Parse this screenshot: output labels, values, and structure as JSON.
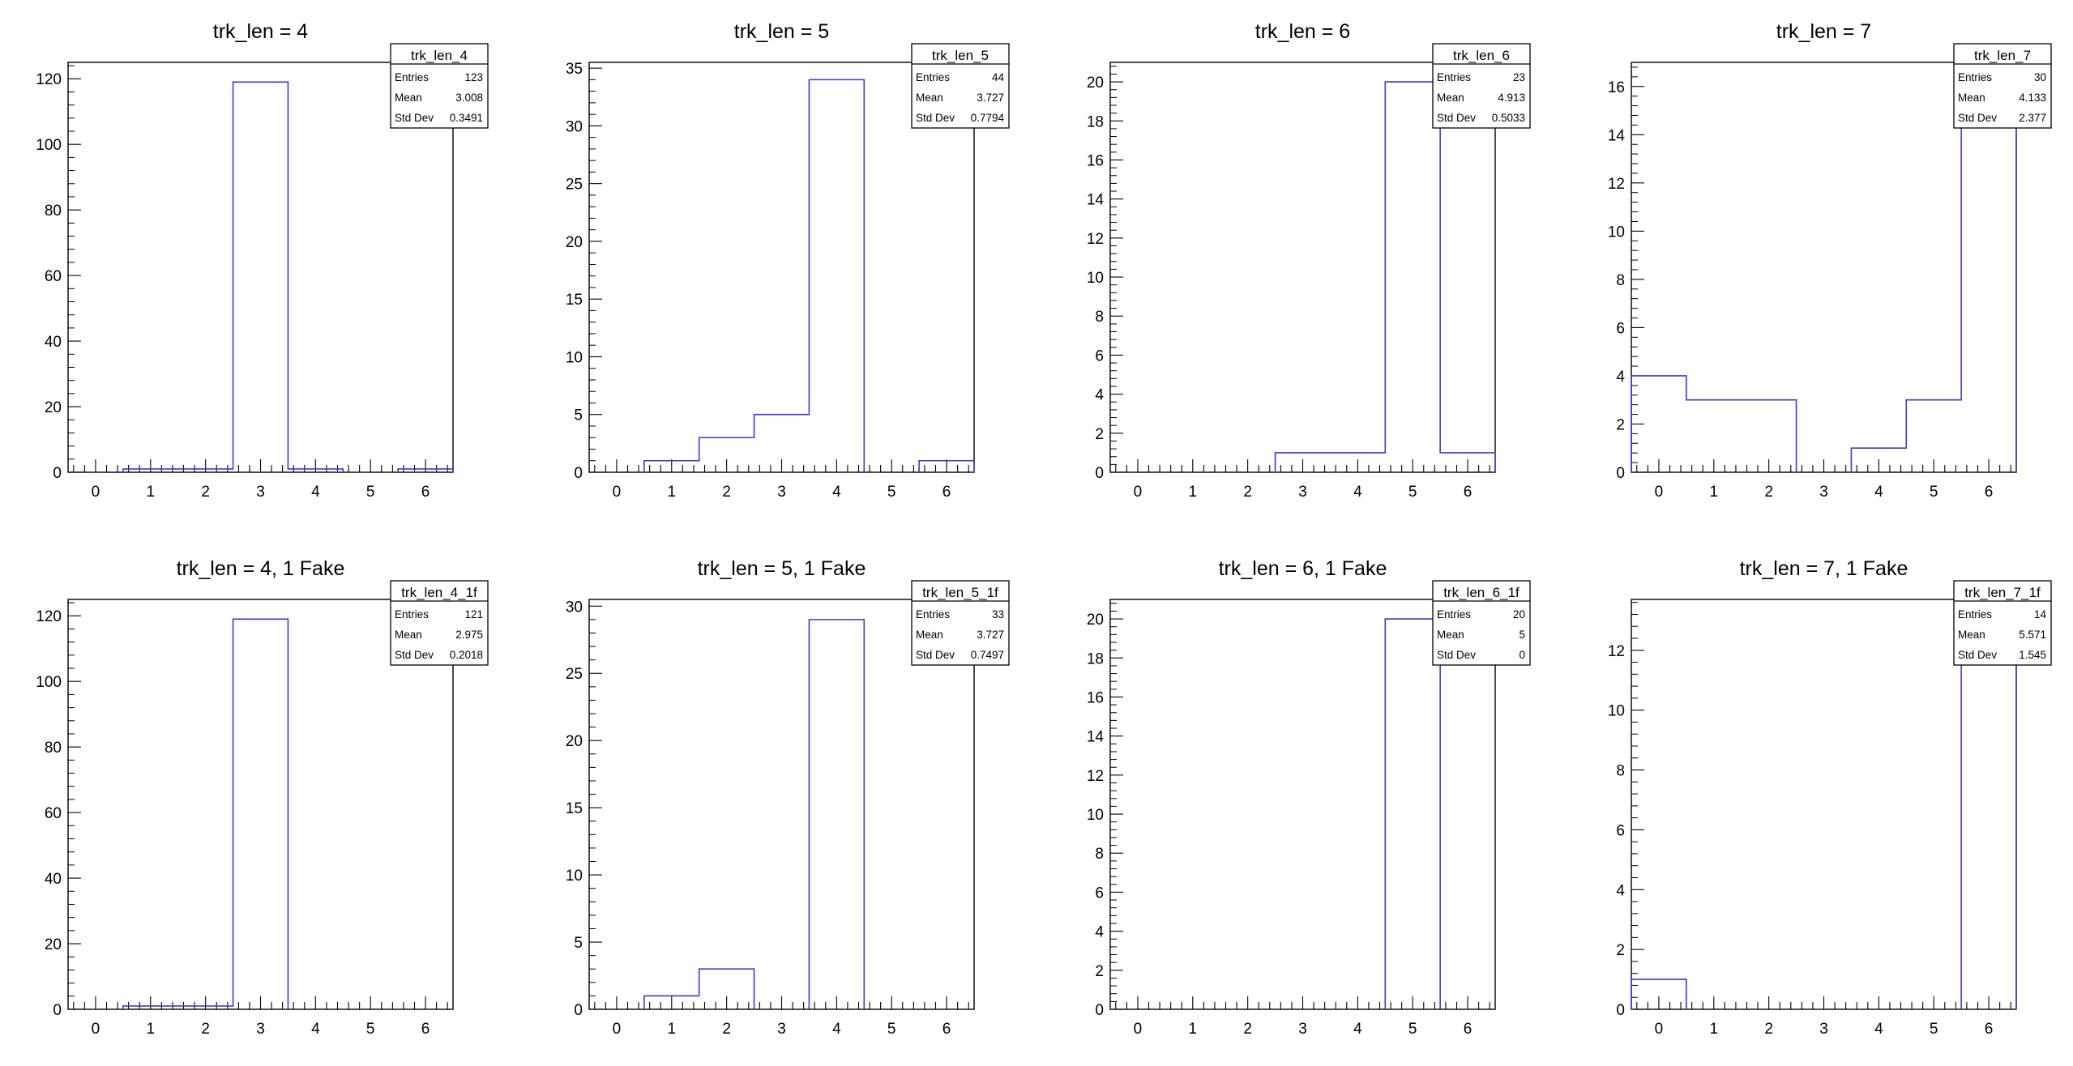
{
  "colors": {
    "histogram_line": "#3a3ad8",
    "frame": "#000000",
    "background": "#ffffff"
  },
  "chart_data": [
    {
      "type": "histogram",
      "title": "trk_len = 4",
      "x_bin_centers": [
        -0.5,
        0,
        1,
        2,
        3,
        4,
        5,
        6
      ],
      "xlim": [
        -0.5,
        6.5
      ],
      "ylim": [
        0,
        125
      ],
      "yticks": [
        0,
        20,
        40,
        60,
        80,
        100,
        120
      ],
      "bins": [
        {
          "x": 1,
          "y": 1
        },
        {
          "x": 2,
          "y": 1
        },
        {
          "x": 3,
          "y": 119
        },
        {
          "x": 4,
          "y": 1
        },
        {
          "x": 6,
          "y": 1
        }
      ],
      "stats": {
        "name": "trk_len_4",
        "entries_label": "Entries",
        "entries": "123",
        "mean_label": "Mean",
        "mean": "3.008",
        "std_label": "Std Dev",
        "std": "0.3491"
      }
    },
    {
      "type": "histogram",
      "title": "trk_len = 5",
      "xlim": [
        -0.5,
        6.5
      ],
      "ylim": [
        0,
        35.5
      ],
      "yticks": [
        0,
        5,
        10,
        15,
        20,
        25,
        30,
        35
      ],
      "bins": [
        {
          "x": 1,
          "y": 1
        },
        {
          "x": 2,
          "y": 3
        },
        {
          "x": 3,
          "y": 5
        },
        {
          "x": 4,
          "y": 34
        },
        {
          "x": 6,
          "y": 1
        }
      ],
      "stats": {
        "name": "trk_len_5",
        "entries_label": "Entries",
        "entries": "44",
        "mean_label": "Mean",
        "mean": "3.727",
        "std_label": "Std Dev",
        "std": "0.7794"
      }
    },
    {
      "type": "histogram",
      "title": "trk_len = 6",
      "xlim": [
        -0.5,
        6.5
      ],
      "ylim": [
        0,
        21
      ],
      "yticks": [
        0,
        2,
        4,
        6,
        8,
        10,
        12,
        14,
        16,
        18,
        20
      ],
      "bins": [
        {
          "x": 3,
          "y": 1
        },
        {
          "x": 4,
          "y": 1
        },
        {
          "x": 5,
          "y": 20
        },
        {
          "x": 6,
          "y": 1
        }
      ],
      "stats": {
        "name": "trk_len_6",
        "entries_label": "Entries",
        "entries": "23",
        "mean_label": "Mean",
        "mean": "4.913",
        "std_label": "Std Dev",
        "std": "0.5033"
      }
    },
    {
      "type": "histogram",
      "title": "trk_len = 7",
      "xlim": [
        -0.5,
        6.5
      ],
      "ylim": [
        0,
        17
      ],
      "yticks": [
        0,
        2,
        4,
        6,
        8,
        10,
        12,
        14,
        16
      ],
      "bins": [
        {
          "x": 0,
          "y": 4
        },
        {
          "x": 1,
          "y": 3
        },
        {
          "x": 2,
          "y": 3
        },
        {
          "x": 4,
          "y": 1
        },
        {
          "x": 5,
          "y": 3
        },
        {
          "x": 6,
          "y": 16
        }
      ],
      "stats": {
        "name": "trk_len_7",
        "entries_label": "Entries",
        "entries": "30",
        "mean_label": "Mean",
        "mean": "4.133",
        "std_label": "Std Dev",
        "std": "2.377"
      }
    },
    {
      "type": "histogram",
      "title": "trk_len = 4, 1 Fake",
      "xlim": [
        -0.5,
        6.5
      ],
      "ylim": [
        0,
        125
      ],
      "yticks": [
        0,
        20,
        40,
        60,
        80,
        100,
        120
      ],
      "bins": [
        {
          "x": 1,
          "y": 1
        },
        {
          "x": 2,
          "y": 1
        },
        {
          "x": 3,
          "y": 119
        }
      ],
      "stats": {
        "name": "trk_len_4_1f",
        "entries_label": "Entries",
        "entries": "121",
        "mean_label": "Mean",
        "mean": "2.975",
        "std_label": "Std Dev",
        "std": "0.2018"
      }
    },
    {
      "type": "histogram",
      "title": "trk_len = 5, 1 Fake",
      "xlim": [
        -0.5,
        6.5
      ],
      "ylim": [
        0,
        30.5
      ],
      "yticks": [
        0,
        5,
        10,
        15,
        20,
        25,
        30
      ],
      "bins": [
        {
          "x": 1,
          "y": 1
        },
        {
          "x": 2,
          "y": 3
        },
        {
          "x": 4,
          "y": 29
        }
      ],
      "stats": {
        "name": "trk_len_5_1f",
        "entries_label": "Entries",
        "entries": "33",
        "mean_label": "Mean",
        "mean": "3.727",
        "std_label": "Std Dev",
        "std": "0.7497"
      }
    },
    {
      "type": "histogram",
      "title": "trk_len = 6, 1 Fake",
      "xlim": [
        -0.5,
        6.5
      ],
      "ylim": [
        0,
        21
      ],
      "yticks": [
        0,
        2,
        4,
        6,
        8,
        10,
        12,
        14,
        16,
        18,
        20
      ],
      "bins": [
        {
          "x": 5,
          "y": 20
        }
      ],
      "stats": {
        "name": "trk_len_6_1f",
        "entries_label": "Entries",
        "entries": "20",
        "mean_label": "Mean",
        "mean": "5",
        "std_label": "Std Dev",
        "std": "0"
      }
    },
    {
      "type": "histogram",
      "title": "trk_len = 7, 1 Fake",
      "xlim": [
        -0.5,
        6.5
      ],
      "ylim": [
        0,
        13.7
      ],
      "yticks": [
        0,
        2,
        4,
        6,
        8,
        10,
        12
      ],
      "bins": [
        {
          "x": 0,
          "y": 1
        },
        {
          "x": 6,
          "y": 13
        }
      ],
      "stats": {
        "name": "trk_len_7_1f",
        "entries_label": "Entries",
        "entries": "14",
        "mean_label": "Mean",
        "mean": "5.571",
        "std_label": "Std Dev",
        "std": "1.545"
      }
    }
  ]
}
